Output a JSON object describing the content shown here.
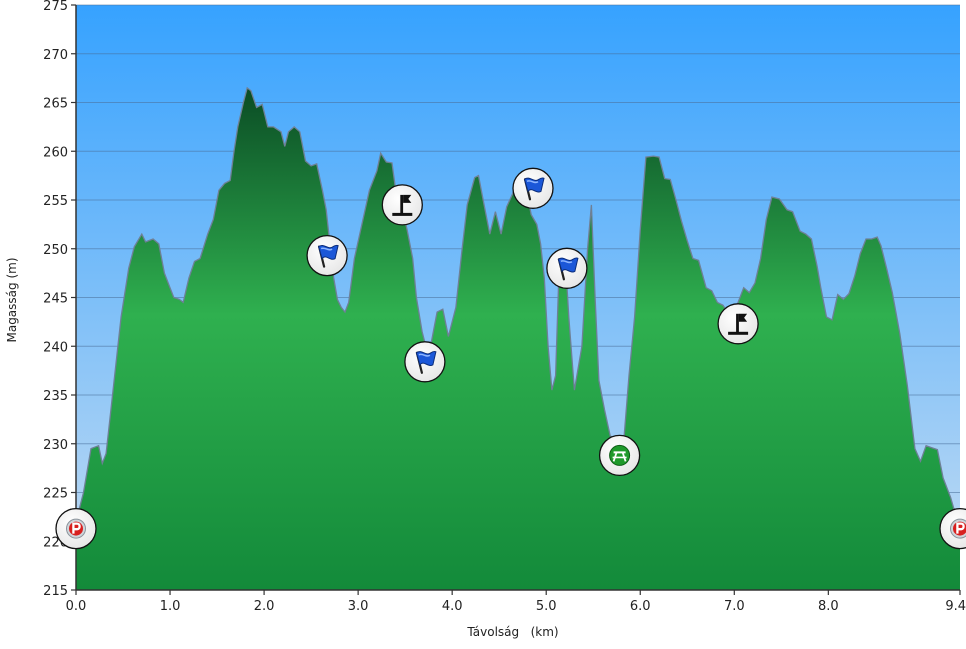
{
  "chart_data": {
    "type": "area",
    "xlabel": "Távolság   (km)",
    "ylabel": "Magasság (m)",
    "xlim": [
      0,
      9.4
    ],
    "ylim": [
      215,
      275
    ],
    "x_ticks": [
      {
        "value": 0,
        "label": "0.0"
      },
      {
        "value": 1,
        "label": "1.0"
      },
      {
        "value": 2,
        "label": "2.0"
      },
      {
        "value": 3,
        "label": "3.0"
      },
      {
        "value": 4,
        "label": "4.0"
      },
      {
        "value": 5,
        "label": "5.0"
      },
      {
        "value": 6,
        "label": "6.0"
      },
      {
        "value": 7,
        "label": "7.0"
      },
      {
        "value": 8,
        "label": "8.0"
      },
      {
        "value": 9.4,
        "label": "9.4"
      }
    ],
    "y_ticks": [
      {
        "value": 215,
        "label": "215"
      },
      {
        "value": 220,
        "label": "220"
      },
      {
        "value": 225,
        "label": "225"
      },
      {
        "value": 230,
        "label": "230"
      },
      {
        "value": 235,
        "label": "235"
      },
      {
        "value": 240,
        "label": "240"
      },
      {
        "value": 245,
        "label": "245"
      },
      {
        "value": 250,
        "label": "250"
      },
      {
        "value": 255,
        "label": "255"
      },
      {
        "value": 260,
        "label": "260"
      },
      {
        "value": 265,
        "label": "265"
      },
      {
        "value": 270,
        "label": "270"
      },
      {
        "value": 275,
        "label": "275"
      }
    ],
    "grid": true,
    "colors": {
      "sky_top": "#36a2ff",
      "sky_bottom": "#c4dcf2",
      "fill_top": "#0b4d25",
      "fill_mid": "#2fb04f",
      "fill_bottom": "#138a3a",
      "outline": "#6e8096",
      "grid": "#4b6f99",
      "axis": "#333333"
    },
    "series": [
      {
        "points": [
          [
            0.0,
            222
          ],
          [
            0.08,
            225
          ],
          [
            0.16,
            229.5
          ],
          [
            0.24,
            229.8
          ],
          [
            0.28,
            228
          ],
          [
            0.32,
            229
          ],
          [
            0.4,
            236
          ],
          [
            0.48,
            243
          ],
          [
            0.56,
            248
          ],
          [
            0.62,
            250.2
          ],
          [
            0.7,
            251.5
          ],
          [
            0.74,
            250.7
          ],
          [
            0.82,
            251
          ],
          [
            0.88,
            250.5
          ],
          [
            0.94,
            247.5
          ],
          [
            1.0,
            246
          ],
          [
            1.04,
            245
          ],
          [
            1.1,
            244.8
          ],
          [
            1.14,
            244.5
          ],
          [
            1.2,
            247
          ],
          [
            1.26,
            248.7
          ],
          [
            1.32,
            249
          ],
          [
            1.4,
            251.5
          ],
          [
            1.46,
            253
          ],
          [
            1.52,
            256
          ],
          [
            1.58,
            256.7
          ],
          [
            1.64,
            257
          ],
          [
            1.68,
            260
          ],
          [
            1.72,
            262.5
          ],
          [
            1.78,
            265
          ],
          [
            1.82,
            266.5
          ],
          [
            1.86,
            266.2
          ],
          [
            1.92,
            264.5
          ],
          [
            1.98,
            264.8
          ],
          [
            2.04,
            262.5
          ],
          [
            2.1,
            262.5
          ],
          [
            2.18,
            262
          ],
          [
            2.22,
            260.5
          ],
          [
            2.26,
            262
          ],
          [
            2.32,
            262.5
          ],
          [
            2.38,
            262
          ],
          [
            2.44,
            259
          ],
          [
            2.5,
            258.5
          ],
          [
            2.56,
            258.7
          ],
          [
            2.62,
            256
          ],
          [
            2.66,
            254
          ],
          [
            2.7,
            250.5
          ],
          [
            2.74,
            247
          ],
          [
            2.78,
            244.8
          ],
          [
            2.82,
            244
          ],
          [
            2.86,
            243.5
          ],
          [
            2.9,
            244.5
          ],
          [
            2.96,
            249
          ],
          [
            3.04,
            252.5
          ],
          [
            3.12,
            256
          ],
          [
            3.2,
            258
          ],
          [
            3.24,
            259.8
          ],
          [
            3.3,
            258.9
          ],
          [
            3.36,
            258.8
          ],
          [
            3.4,
            256
          ],
          [
            3.46,
            254.5
          ],
          [
            3.52,
            252
          ],
          [
            3.58,
            249
          ],
          [
            3.62,
            245
          ],
          [
            3.68,
            241.5
          ],
          [
            3.72,
            240
          ],
          [
            3.78,
            240.5
          ],
          [
            3.84,
            243.5
          ],
          [
            3.9,
            243.8
          ],
          [
            3.96,
            241
          ],
          [
            4.04,
            244
          ],
          [
            4.1,
            249.5
          ],
          [
            4.16,
            254.5
          ],
          [
            4.24,
            257.3
          ],
          [
            4.28,
            257.5
          ],
          [
            4.34,
            254.5
          ],
          [
            4.4,
            251.5
          ],
          [
            4.46,
            253.8
          ],
          [
            4.52,
            251.5
          ],
          [
            4.58,
            254.3
          ],
          [
            4.66,
            256
          ],
          [
            4.72,
            257.5
          ],
          [
            4.78,
            256.5
          ],
          [
            4.84,
            253.5
          ],
          [
            4.9,
            252.5
          ],
          [
            4.94,
            250.5
          ],
          [
            4.98,
            247
          ],
          [
            5.02,
            240
          ],
          [
            5.06,
            235.5
          ],
          [
            5.1,
            237
          ],
          [
            5.14,
            249
          ],
          [
            5.2,
            249.5
          ],
          [
            5.24,
            243
          ],
          [
            5.3,
            235.5
          ],
          [
            5.38,
            240
          ],
          [
            5.44,
            250
          ],
          [
            5.48,
            254.5
          ],
          [
            5.52,
            245
          ],
          [
            5.56,
            236.5
          ],
          [
            5.62,
            233.5
          ],
          [
            5.68,
            230.8
          ],
          [
            5.76,
            230.3
          ],
          [
            5.82,
            229.7
          ],
          [
            5.88,
            237
          ],
          [
            5.94,
            243
          ],
          [
            6.0,
            252
          ],
          [
            6.06,
            259.4
          ],
          [
            6.14,
            259.5
          ],
          [
            6.2,
            259.4
          ],
          [
            6.26,
            257.2
          ],
          [
            6.32,
            257.1
          ],
          [
            6.38,
            255
          ],
          [
            6.44,
            252.8
          ],
          [
            6.5,
            250.8
          ],
          [
            6.56,
            249
          ],
          [
            6.62,
            248.8
          ],
          [
            6.7,
            246
          ],
          [
            6.76,
            245.7
          ],
          [
            6.82,
            244.5
          ],
          [
            6.88,
            244.2
          ],
          [
            6.96,
            243
          ],
          [
            7.04,
            244.5
          ],
          [
            7.1,
            246
          ],
          [
            7.16,
            245.5
          ],
          [
            7.22,
            246.5
          ],
          [
            7.28,
            249
          ],
          [
            7.34,
            253
          ],
          [
            7.4,
            255.3
          ],
          [
            7.48,
            255.1
          ],
          [
            7.56,
            254
          ],
          [
            7.62,
            253.8
          ],
          [
            7.7,
            251.8
          ],
          [
            7.76,
            251.5
          ],
          [
            7.82,
            251
          ],
          [
            7.88,
            248.2
          ],
          [
            7.92,
            246
          ],
          [
            7.98,
            243
          ],
          [
            8.04,
            242.7
          ],
          [
            8.1,
            245.3
          ],
          [
            8.16,
            244.8
          ],
          [
            8.22,
            245.4
          ],
          [
            8.28,
            247.2
          ],
          [
            8.34,
            249.5
          ],
          [
            8.4,
            251
          ],
          [
            8.46,
            251
          ],
          [
            8.52,
            251.2
          ],
          [
            8.56,
            250.3
          ],
          [
            8.62,
            248
          ],
          [
            8.68,
            245.5
          ],
          [
            8.76,
            241.3
          ],
          [
            8.84,
            236
          ],
          [
            8.92,
            229.5
          ],
          [
            8.98,
            228.2
          ],
          [
            9.04,
            229.8
          ],
          [
            9.1,
            229.6
          ],
          [
            9.16,
            229.4
          ],
          [
            9.22,
            226.5
          ],
          [
            9.3,
            224.5
          ],
          [
            9.36,
            222.5
          ],
          [
            9.4,
            221.5
          ]
        ]
      }
    ],
    "markers": [
      {
        "x": 0.0,
        "y": 221.3,
        "icon": "parking-icon"
      },
      {
        "x": 2.67,
        "y": 249.3,
        "icon": "blue-flag-icon"
      },
      {
        "x": 3.47,
        "y": 254.5,
        "icon": "summit-flag-icon"
      },
      {
        "x": 3.71,
        "y": 238.4,
        "icon": "blue-flag-icon"
      },
      {
        "x": 4.86,
        "y": 256.2,
        "icon": "blue-flag-icon"
      },
      {
        "x": 5.22,
        "y": 248.0,
        "icon": "blue-flag-icon"
      },
      {
        "x": 5.78,
        "y": 228.8,
        "icon": "picnic-table-icon"
      },
      {
        "x": 7.04,
        "y": 242.3,
        "icon": "summit-flag-icon"
      },
      {
        "x": 9.4,
        "y": 221.3,
        "icon": "parking-icon"
      }
    ]
  }
}
